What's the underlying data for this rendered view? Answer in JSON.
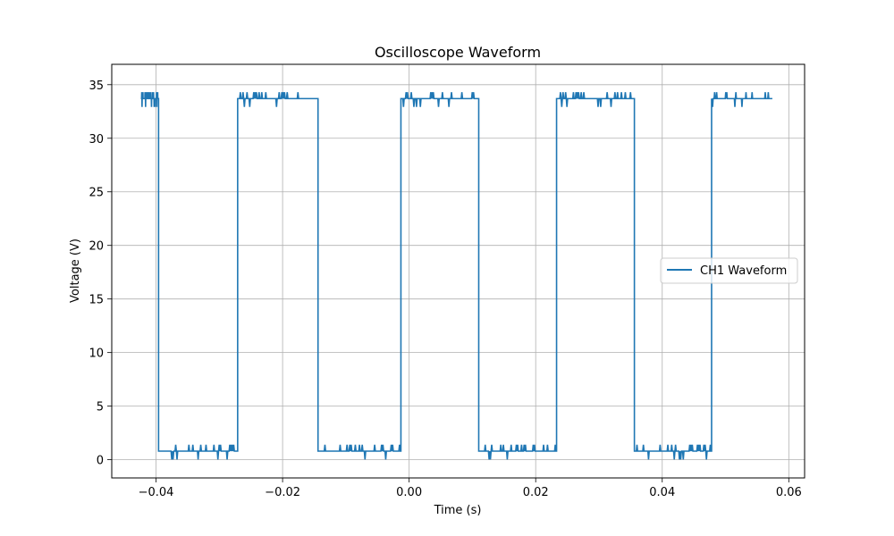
{
  "chart_data": {
    "type": "line",
    "title": "Oscilloscope Waveform",
    "xlabel": "Time (s)",
    "ylabel": "Voltage (V)",
    "xlim": [
      -0.047,
      0.0625
    ],
    "ylim": [
      -1.7,
      36.9
    ],
    "xticks": [
      -0.04,
      -0.02,
      0.0,
      0.02,
      0.04,
      0.06
    ],
    "xtick_labels": [
      "−0.04",
      "−0.02",
      "0.00",
      "0.02",
      "0.04",
      "0.06"
    ],
    "yticks": [
      0,
      5,
      10,
      15,
      20,
      25,
      30,
      35
    ],
    "ytick_labels": [
      "0",
      "5",
      "10",
      "15",
      "20",
      "25",
      "30",
      "35"
    ],
    "grid": true,
    "legend_position": "center-right",
    "series": [
      {
        "name": "CH1 Waveform",
        "color": "#1f77b4",
        "x": [
          -0.0424,
          -0.0396,
          -0.0396,
          -0.0271,
          -0.0271,
          -0.0144,
          -0.0144,
          -0.0013,
          -0.0013,
          0.011,
          0.011,
          0.0233,
          0.0233,
          0.0356,
          0.0356,
          0.0478,
          0.0478,
          0.0574
        ],
        "y": [
          33.7,
          33.7,
          0.8,
          0.8,
          33.7,
          33.7,
          0.8,
          0.8,
          33.7,
          33.7,
          0.8,
          0.8,
          33.7,
          33.7,
          0.8,
          0.8,
          33.7,
          33.7
        ],
        "high_level": 33.7,
        "low_level": 0.8,
        "noise_amplitude": 0.6
      }
    ]
  }
}
